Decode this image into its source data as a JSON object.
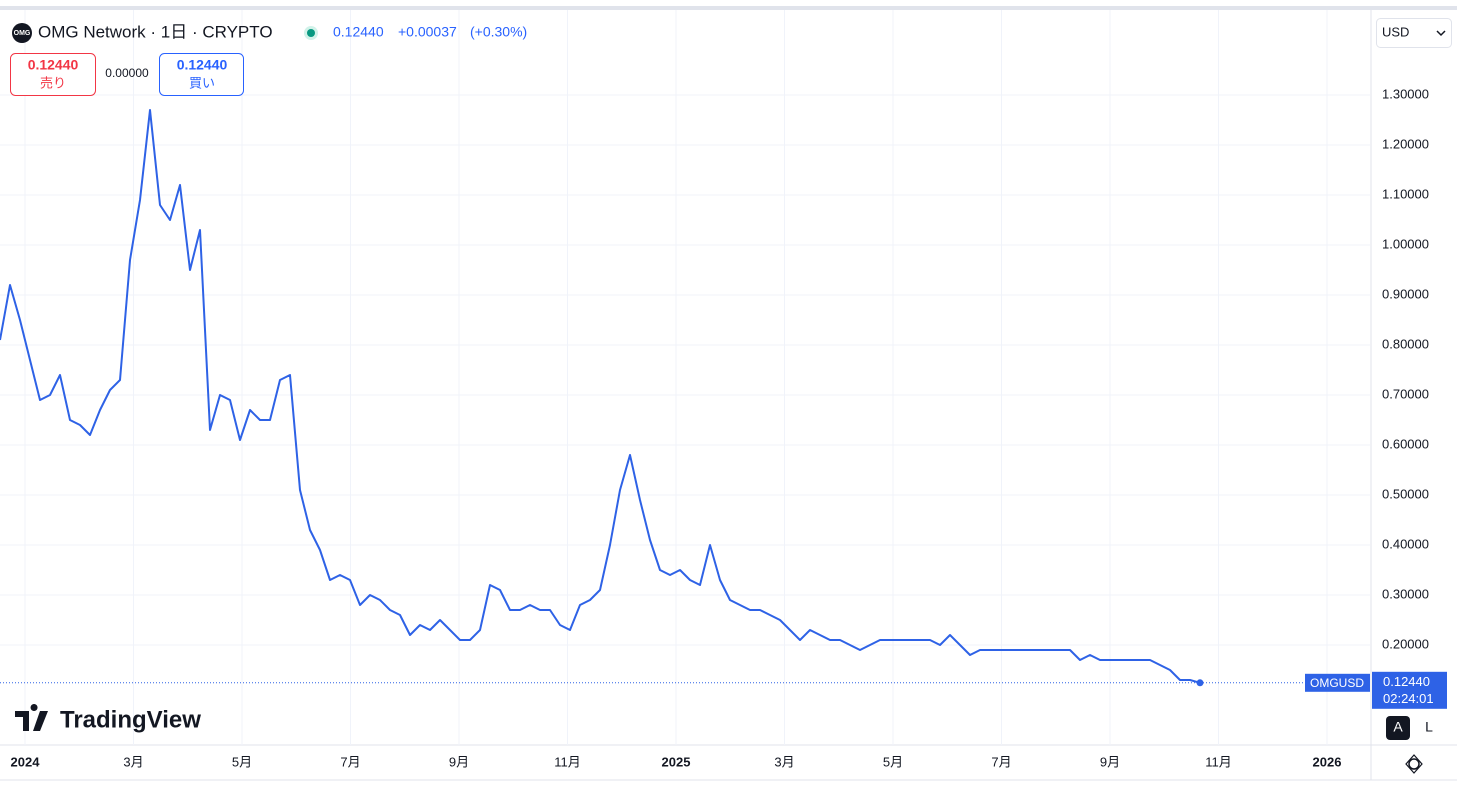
{
  "header": {
    "icon": "OMG",
    "symbol": "OMG Network · 1日 · CRYPTO",
    "price": "0.12440",
    "change": "+0.00037",
    "change_pct": "(+0.30%)"
  },
  "trade": {
    "sell_price": "0.12440",
    "sell_label": "売り",
    "spread": "0.00000",
    "buy_price": "0.12440",
    "buy_label": "買い"
  },
  "currency": "USD",
  "logo": "TradingView",
  "buttons": [
    "A",
    "L"
  ],
  "chart_data": {
    "type": "line",
    "series": [
      {
        "name": "OMGUSD",
        "color": "#2e62e6",
        "values": [
          0.81,
          0.92,
          0.85,
          0.77,
          0.69,
          0.7,
          0.74,
          0.65,
          0.64,
          0.62,
          0.67,
          0.71,
          0.73,
          0.97,
          1.09,
          1.27,
          1.08,
          1.05,
          1.12,
          0.95,
          1.03,
          0.63,
          0.7,
          0.69,
          0.61,
          0.67,
          0.65,
          0.65,
          0.73,
          0.74,
          0.51,
          0.43,
          0.39,
          0.33,
          0.34,
          0.33,
          0.28,
          0.3,
          0.29,
          0.27,
          0.26,
          0.22,
          0.24,
          0.23,
          0.25,
          0.23,
          0.21,
          0.21,
          0.23,
          0.32,
          0.31,
          0.27,
          0.27,
          0.28,
          0.27,
          0.27,
          0.24,
          0.23,
          0.28,
          0.29,
          0.31,
          0.4,
          0.51,
          0.58,
          0.49,
          0.41,
          0.35,
          0.34,
          0.35,
          0.33,
          0.32,
          0.4,
          0.33,
          0.29,
          0.28,
          0.27,
          0.27,
          0.26,
          0.25,
          0.23,
          0.21,
          0.23,
          0.22,
          0.21,
          0.21,
          0.2,
          0.19,
          0.2,
          0.21,
          0.21,
          0.21,
          0.21,
          0.21,
          0.21,
          0.2,
          0.22,
          0.2,
          0.18,
          0.19,
          0.19,
          0.19,
          0.19,
          0.19,
          0.19,
          0.19,
          0.19,
          0.19,
          0.19,
          0.17,
          0.18,
          0.17,
          0.17,
          0.17,
          0.17,
          0.17,
          0.17,
          0.16,
          0.15,
          0.13,
          0.13,
          0.1244
        ]
      }
    ],
    "x_axis_labels": [
      "2024",
      "3月",
      "5月",
      "7月",
      "9月",
      "11月",
      "2025",
      "3月",
      "5月",
      "7月",
      "9月",
      "11月",
      "2026"
    ],
    "ylim": [
      0,
      1.47
    ],
    "yticks": [
      {
        "value": 0.2,
        "label": "0.20000"
      },
      {
        "value": 0.3,
        "label": "0.30000"
      },
      {
        "value": 0.4,
        "label": "0.40000"
      },
      {
        "value": 0.5,
        "label": "0.50000"
      },
      {
        "value": 0.6,
        "label": "0.60000"
      },
      {
        "value": 0.7,
        "label": "0.70000"
      },
      {
        "value": 0.8,
        "label": "0.80000"
      },
      {
        "value": 0.9,
        "label": "0.90000"
      },
      {
        "value": 1.0,
        "label": "1.00000"
      },
      {
        "value": 1.1,
        "label": "1.10000"
      },
      {
        "value": 1.2,
        "label": "1.20000"
      },
      {
        "value": 1.3,
        "label": "1.30000"
      }
    ],
    "current_price": {
      "value": 0.1244,
      "label": "0.12440"
    },
    "countdown": "02:24:01",
    "grid": true
  }
}
